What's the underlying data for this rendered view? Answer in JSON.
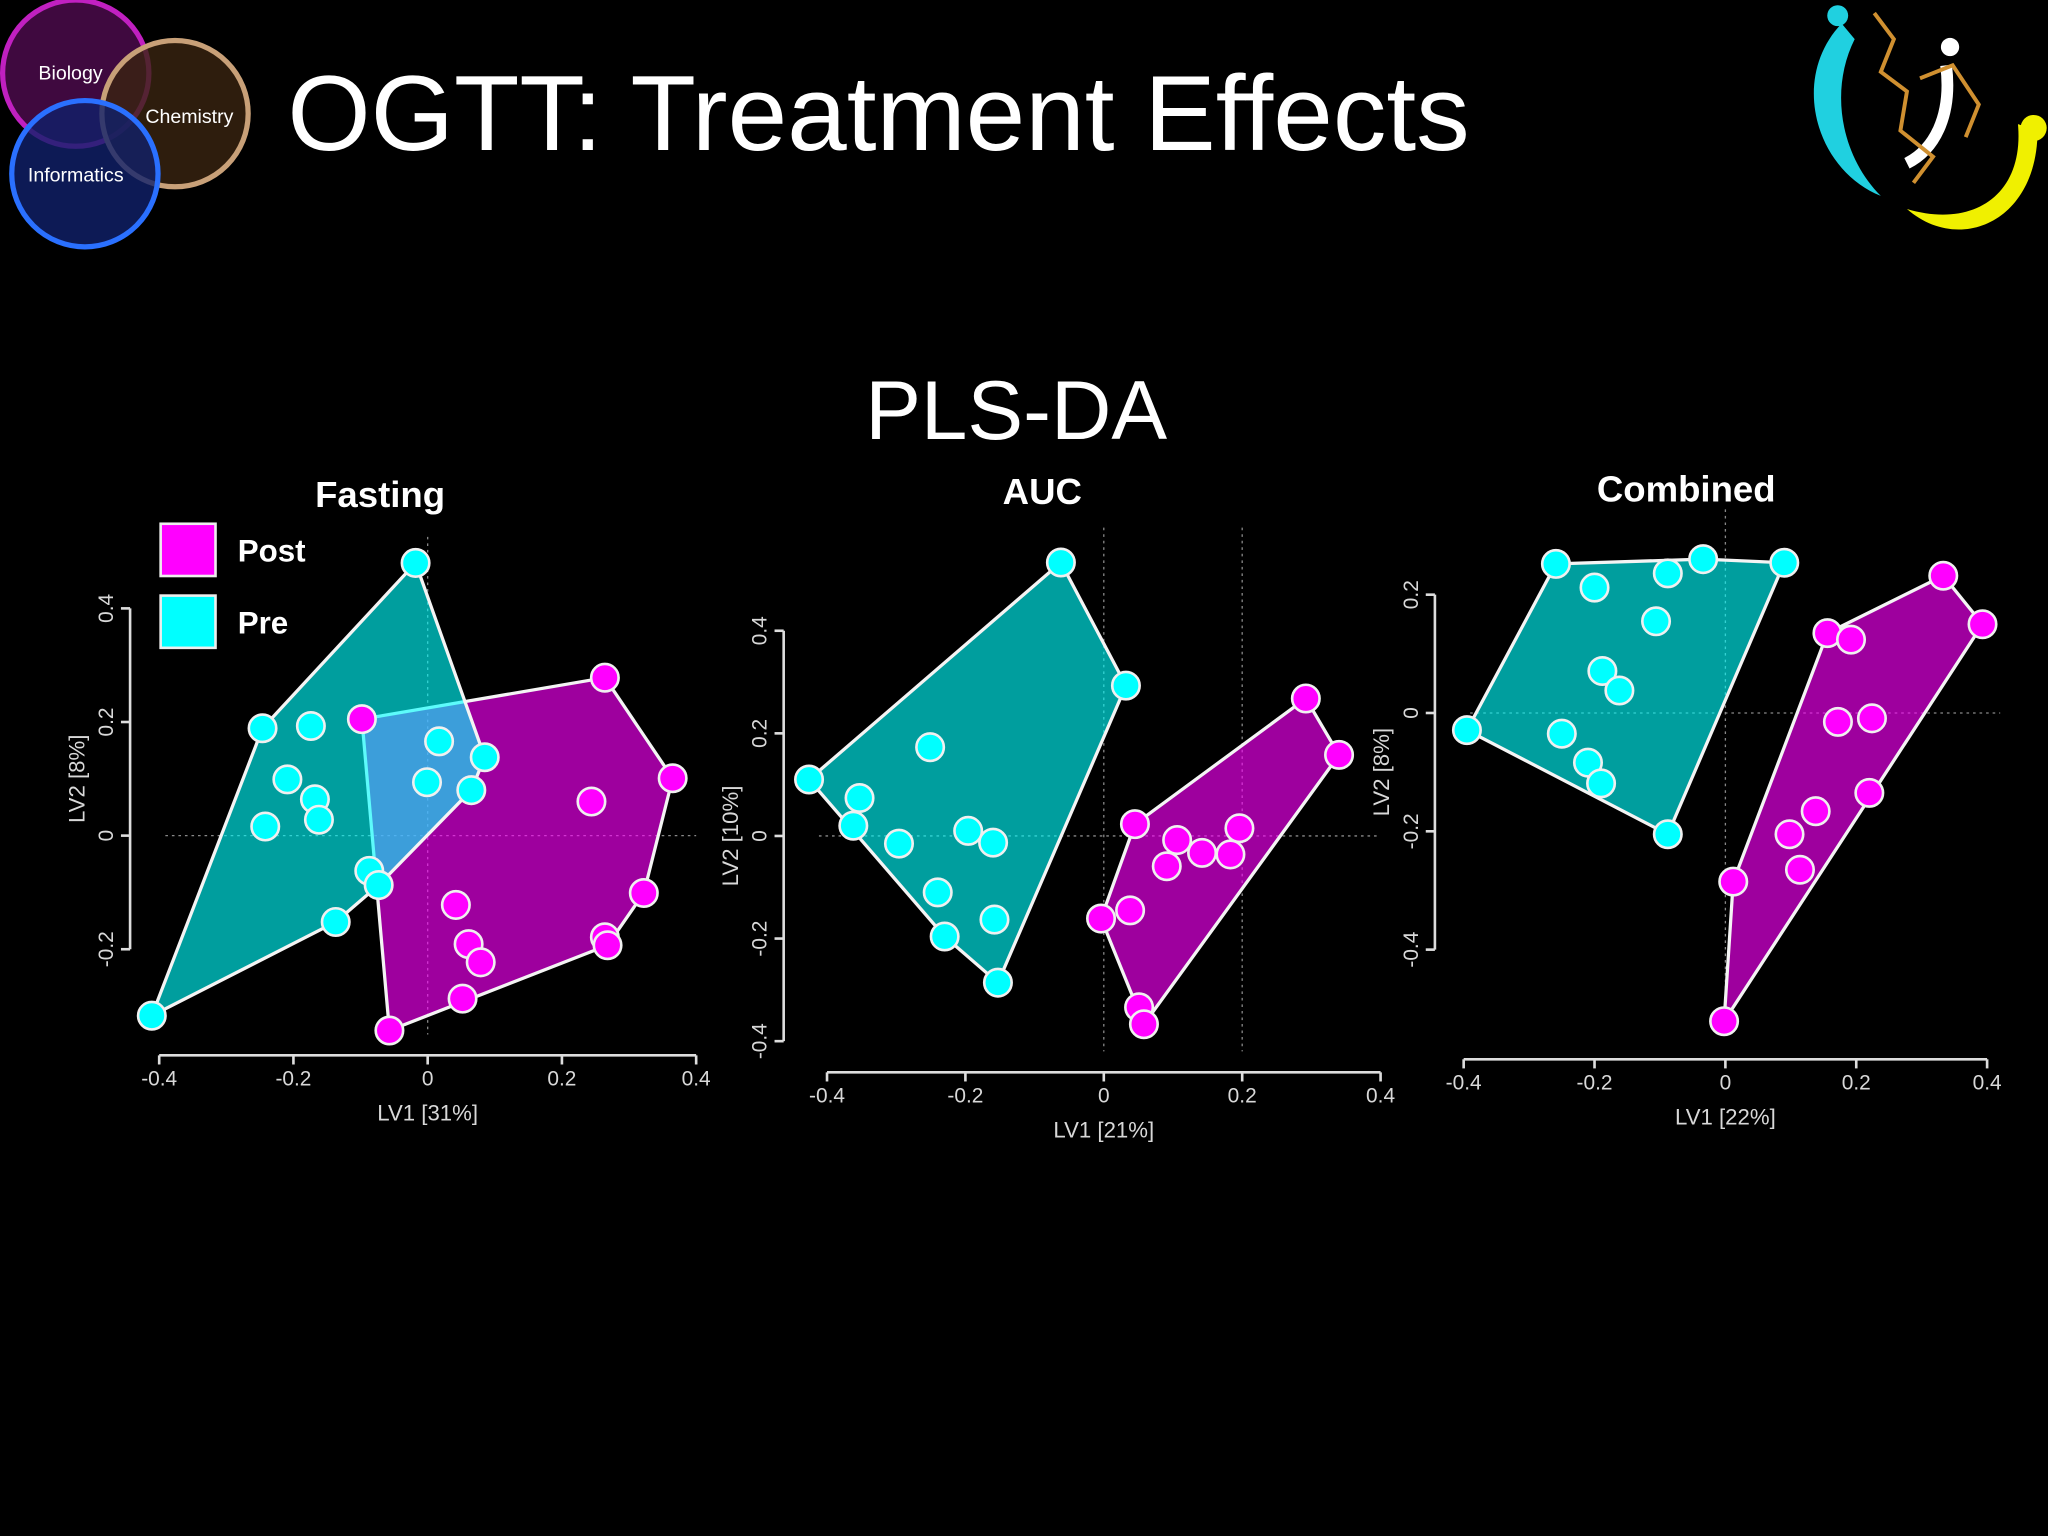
{
  "slide": {
    "title": "OGTT: Treatment Effects",
    "subtitle": "PLS-DA",
    "venn": [
      "Biology",
      "Chemistry",
      "Informatics"
    ]
  },
  "chart_data": [
    {
      "type": "scatter",
      "title": "Fasting",
      "x_label": "LV1 [31%]",
      "y_label": "LV2 [8%]",
      "xlim": [
        -0.42,
        0.4
      ],
      "ylim": [
        -0.35,
        0.48
      ],
      "xticks": [
        -0.4,
        -0.2,
        0,
        0.2,
        0.4
      ],
      "yticks": [
        -0.2,
        0,
        0.2,
        0.4
      ],
      "ref_x": [
        0
      ],
      "ref_y": [
        0
      ],
      "legend": "upper left",
      "hull": true,
      "series": [
        {
          "name": "Post",
          "color": "#ff00ff",
          "x": [
            -0.098,
            0.264,
            0.365,
            0.244,
            0.322,
            0.042,
            0.264,
            0.268,
            0.061,
            0.079,
            0.052,
            -0.057
          ],
          "values": [
            0.205,
            0.278,
            0.101,
            0.06,
            -0.101,
            -0.122,
            -0.179,
            -0.193,
            -0.191,
            -0.223,
            -0.287,
            -0.343
          ]
        },
        {
          "name": "Pre",
          "color": "#00ffff",
          "x": [
            -0.018,
            -0.246,
            -0.174,
            -0.209,
            -0.168,
            -0.162,
            -0.242,
            0.017,
            -0.001,
            0.065,
            0.085,
            -0.087,
            -0.073,
            -0.137,
            -0.411
          ],
          "values": [
            0.48,
            0.189,
            0.193,
            0.099,
            0.064,
            0.028,
            0.016,
            0.166,
            0.094,
            0.08,
            0.138,
            -0.062,
            -0.087,
            -0.152,
            -0.317
          ]
        }
      ]
    },
    {
      "type": "scatter",
      "title": "AUC",
      "x_label": "LV1 [21%]",
      "y_label": "LV2 [10%]",
      "xlim": [
        -0.44,
        0.4
      ],
      "ylim": [
        -0.42,
        0.55
      ],
      "xticks": [
        -0.4,
        -0.2,
        0,
        0.2,
        0.4
      ],
      "yticks": [
        -0.4,
        -0.2,
        0,
        0.2,
        0.4
      ],
      "ref_x": [
        0,
        0.2
      ],
      "ref_y": [
        0
      ],
      "hull": true,
      "series": [
        {
          "color": "#ff00ff",
          "x": [
            0.292,
            0.34,
            0.045,
            0.106,
            0.142,
            0.091,
            0.183,
            0.196,
            -0.004,
            0.038,
            0.051,
            0.058
          ],
          "values": [
            0.268,
            0.158,
            0.023,
            -0.008,
            -0.033,
            -0.059,
            -0.036,
            0.015,
            -0.161,
            -0.145,
            -0.334,
            -0.367
          ]
        },
        {
          "color": "#00ffff",
          "x": [
            -0.062,
            0.032,
            -0.426,
            -0.353,
            -0.251,
            -0.362,
            -0.296,
            -0.196,
            -0.16,
            -0.24,
            -0.23,
            -0.158,
            -0.153
          ],
          "values": [
            0.533,
            0.293,
            0.11,
            0.074,
            0.173,
            0.02,
            -0.015,
            0.01,
            -0.013,
            -0.11,
            -0.196,
            -0.163,
            -0.286
          ]
        }
      ]
    },
    {
      "type": "scatter",
      "title": "Combined",
      "x_label": "LV1 [22%]",
      "y_label": "LV2 [8%]",
      "xlim": [
        -0.42,
        0.42
      ],
      "ylim": [
        -0.55,
        0.3
      ],
      "xticks": [
        -0.4,
        -0.2,
        0,
        0.2,
        0.4
      ],
      "yticks": [
        -0.4,
        -0.2,
        0,
        0.2
      ],
      "ref_x": [
        0
      ],
      "ref_y": [
        0
      ],
      "hull": true,
      "series": [
        {
          "color": "#ff00ff",
          "x": [
            0.333,
            0.393,
            0.156,
            0.192,
            0.172,
            0.224,
            0.22,
            0.138,
            0.098,
            0.114,
            0.012,
            -0.002
          ],
          "values": [
            0.232,
            0.15,
            0.135,
            0.124,
            -0.015,
            -0.009,
            -0.135,
            -0.166,
            -0.205,
            -0.265,
            -0.285,
            -0.521
          ]
        },
        {
          "color": "#00ffff",
          "x": [
            -0.259,
            -0.088,
            -0.034,
            0.09,
            -0.2,
            -0.106,
            -0.188,
            -0.162,
            -0.395,
            -0.25,
            -0.21,
            -0.19,
            -0.088
          ],
          "values": [
            0.252,
            0.236,
            0.26,
            0.254,
            0.212,
            0.155,
            0.071,
            0.038,
            -0.029,
            -0.035,
            -0.084,
            -0.119,
            -0.205
          ]
        }
      ]
    }
  ]
}
